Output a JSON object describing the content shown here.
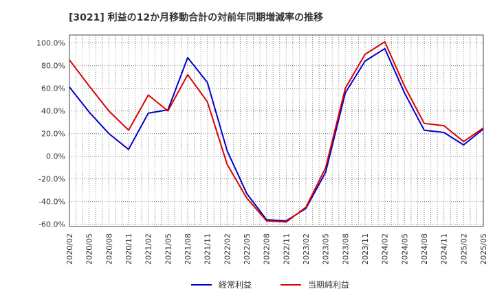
{
  "chart_data": {
    "type": "line",
    "title": "[3021]  利益の12か月移動合計の対前年同期増減率の推移",
    "xlabel": "",
    "ylabel": "",
    "ylim": [
      -62,
      107
    ],
    "y_ticks": [
      100,
      80,
      60,
      40,
      20,
      0,
      -20,
      -40,
      -60
    ],
    "y_tick_labels": [
      "100.0%",
      "80.0%",
      "60.0%",
      "40.0%",
      "20.0%",
      "0.0%",
      "-20.0%",
      "-40.0%",
      "-60.0%"
    ],
    "x_tick_labels": [
      "2020/02",
      "2020/05",
      "2020/08",
      "2020/11",
      "2021/02",
      "2021/05",
      "2021/08",
      "2021/11",
      "2022/02",
      "2022/05",
      "2022/08",
      "2022/11",
      "2023/02",
      "2023/05",
      "2023/08",
      "2023/11",
      "2024/02",
      "2024/05",
      "2024/08",
      "2024/11",
      "2025/02",
      "2025/05"
    ],
    "grid": true,
    "legend_position": "bottom",
    "series": [
      {
        "name": "経常利益",
        "color": "#0000cc",
        "values": [
          61,
          39,
          20,
          6,
          38,
          41,
          87,
          65,
          5,
          -33,
          -56,
          -57,
          -46,
          -14,
          56,
          84,
          95,
          56,
          23,
          21,
          10,
          24
        ]
      },
      {
        "name": "当期純利益",
        "color": "#dd0000",
        "values": [
          85,
          62,
          40,
          23,
          54,
          40,
          72,
          48,
          -7,
          -37,
          -57,
          -58,
          -45,
          -10,
          60,
          90,
          101,
          62,
          29,
          27,
          13,
          25
        ]
      }
    ]
  }
}
